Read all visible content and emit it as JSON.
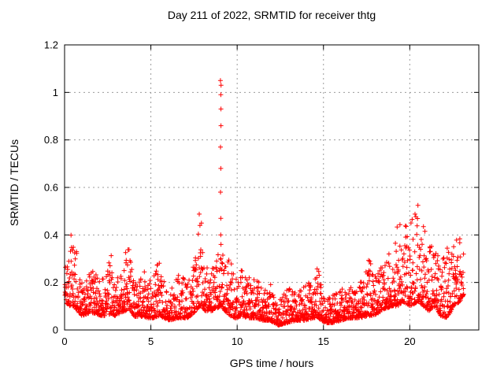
{
  "chart_data": {
    "type": "scatter",
    "title": "Day 211 of 2022, SRMTID for receiver thtg",
    "xlabel": "GPS time / hours",
    "ylabel": "SRMTID / TECUs",
    "xlim": [
      0,
      24
    ],
    "ylim": [
      0,
      1.2
    ],
    "xticks": [
      0,
      5,
      10,
      15,
      20
    ],
    "xtick_labels": [
      "0",
      "5",
      "10",
      "15",
      "20"
    ],
    "yticks": [
      0,
      0.2,
      0.4,
      0.6,
      0.8,
      1,
      1.2
    ],
    "ytick_labels": [
      "0",
      "0.2",
      "0.4",
      "0.6",
      "0.8",
      "1",
      "1.2"
    ],
    "grid": {
      "show": true,
      "color": "#9b9b9b"
    },
    "legend": "none",
    "marker": {
      "type": "plus",
      "color": "#ff0000",
      "size": 7
    },
    "series_name": "SRMTID",
    "scatter": {
      "seed": 42,
      "t_start": 0.02,
      "t_end": 23.12,
      "t_step": 0.02,
      "points_per_step": 2,
      "shape": 2.4,
      "envelope": [
        [
          0.0,
          0.12,
          0.3
        ],
        [
          0.35,
          0.1,
          0.4
        ],
        [
          0.55,
          0.1,
          0.42
        ],
        [
          0.75,
          0.08,
          0.3
        ],
        [
          1.0,
          0.06,
          0.2
        ],
        [
          1.4,
          0.07,
          0.24
        ],
        [
          1.8,
          0.07,
          0.28
        ],
        [
          2.1,
          0.06,
          0.2
        ],
        [
          2.45,
          0.06,
          0.26
        ],
        [
          2.7,
          0.07,
          0.33
        ],
        [
          2.9,
          0.06,
          0.22
        ],
        [
          3.2,
          0.07,
          0.26
        ],
        [
          3.5,
          0.08,
          0.34
        ],
        [
          3.75,
          0.09,
          0.34
        ],
        [
          4.0,
          0.06,
          0.22
        ],
        [
          4.3,
          0.05,
          0.2
        ],
        [
          4.55,
          0.06,
          0.27
        ],
        [
          4.8,
          0.05,
          0.2
        ],
        [
          5.1,
          0.05,
          0.22
        ],
        [
          5.5,
          0.06,
          0.3
        ],
        [
          5.8,
          0.05,
          0.2
        ],
        [
          6.1,
          0.04,
          0.16
        ],
        [
          6.5,
          0.05,
          0.22
        ],
        [
          6.8,
          0.05,
          0.25
        ],
        [
          7.1,
          0.05,
          0.2
        ],
        [
          7.5,
          0.07,
          0.28
        ],
        [
          7.8,
          0.1,
          0.5
        ],
        [
          7.95,
          0.1,
          0.45
        ],
        [
          8.15,
          0.08,
          0.3
        ],
        [
          8.5,
          0.08,
          0.26
        ],
        [
          8.8,
          0.09,
          0.32
        ],
        [
          9.05,
          0.1,
          0.35
        ],
        [
          9.3,
          0.08,
          0.3
        ],
        [
          9.6,
          0.06,
          0.3
        ],
        [
          9.9,
          0.05,
          0.22
        ],
        [
          10.25,
          0.06,
          0.26
        ],
        [
          10.6,
          0.05,
          0.22
        ],
        [
          11.1,
          0.05,
          0.24
        ],
        [
          11.5,
          0.04,
          0.16
        ],
        [
          11.9,
          0.04,
          0.2
        ],
        [
          12.4,
          0.02,
          0.12
        ],
        [
          12.9,
          0.03,
          0.18
        ],
        [
          13.4,
          0.04,
          0.16
        ],
        [
          13.9,
          0.04,
          0.2
        ],
        [
          14.4,
          0.05,
          0.22
        ],
        [
          14.7,
          0.05,
          0.29
        ],
        [
          15.1,
          0.03,
          0.14
        ],
        [
          15.5,
          0.03,
          0.15
        ],
        [
          16.0,
          0.04,
          0.18
        ],
        [
          16.6,
          0.05,
          0.18
        ],
        [
          17.1,
          0.05,
          0.21
        ],
        [
          17.7,
          0.06,
          0.31
        ],
        [
          17.9,
          0.06,
          0.22
        ],
        [
          18.4,
          0.08,
          0.27
        ],
        [
          18.9,
          0.1,
          0.34
        ],
        [
          19.3,
          0.1,
          0.48
        ],
        [
          19.6,
          0.12,
          0.42
        ],
        [
          20.0,
          0.1,
          0.5
        ],
        [
          20.5,
          0.12,
          0.55
        ],
        [
          20.8,
          0.1,
          0.45
        ],
        [
          21.1,
          0.08,
          0.35
        ],
        [
          21.5,
          0.1,
          0.42
        ],
        [
          21.8,
          0.06,
          0.3
        ],
        [
          22.2,
          0.05,
          0.35
        ],
        [
          22.5,
          0.1,
          0.38
        ],
        [
          22.9,
          0.12,
          0.4
        ],
        [
          23.12,
          0.15,
          0.37
        ]
      ],
      "spike": {
        "t": 9.04,
        "values": [
          1.05,
          1.03,
          0.99,
          0.93,
          0.86,
          0.77,
          0.68,
          0.58,
          0.47,
          0.4,
          0.36,
          0.3,
          0.26
        ]
      }
    }
  }
}
